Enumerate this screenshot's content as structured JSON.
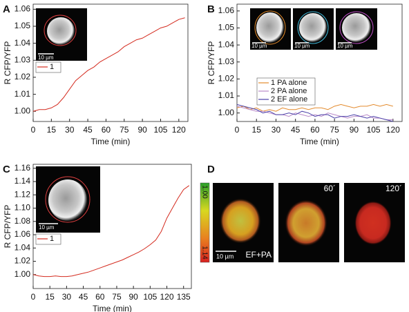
{
  "chart_data": [
    {
      "type": "line",
      "panel": "A",
      "xlabel": "Time (min)",
      "ylabel": "R CFP/YFP",
      "x": [
        0,
        5,
        10,
        15,
        20,
        25,
        30,
        35,
        40,
        45,
        50,
        55,
        60,
        65,
        70,
        75,
        80,
        85,
        90,
        95,
        100,
        105,
        110,
        115,
        120,
        125
      ],
      "series": [
        {
          "name": "1",
          "color": "#d42a1e",
          "values": [
            1.0,
            1.001,
            1.001,
            1.002,
            1.004,
            1.008,
            1.013,
            1.018,
            1.021,
            1.024,
            1.026,
            1.029,
            1.031,
            1.033,
            1.035,
            1.038,
            1.04,
            1.042,
            1.043,
            1.045,
            1.047,
            1.049,
            1.05,
            1.052,
            1.054,
            1.055
          ]
        }
      ],
      "xlim": [
        0,
        127.5
      ],
      "ylim": [
        0.994,
        1.063
      ],
      "xticks": [
        0,
        15,
        30,
        45,
        60,
        75,
        90,
        105,
        120
      ],
      "yticks": [
        {
          "value": 1.0,
          "label": "1.00"
        },
        {
          "value": 1.01,
          "label": "1.01"
        },
        {
          "value": 1.02,
          "label": "1.02"
        },
        {
          "value": 1.03,
          "label": "1.03"
        },
        {
          "value": 1.04,
          "label": "1.04"
        },
        {
          "value": 1.05,
          "label": "1.05"
        },
        {
          "value": 1.06,
          "label": "1.06"
        }
      ],
      "scale_bar_labels": [
        "10 µm"
      ]
    },
    {
      "type": "line",
      "panel": "B",
      "xlabel": "Time (min)",
      "ylabel": "R CFP/YFP",
      "x": [
        0,
        5,
        10,
        15,
        20,
        25,
        30,
        35,
        40,
        45,
        50,
        55,
        60,
        65,
        70,
        75,
        80,
        85,
        90,
        95,
        100,
        105,
        110,
        115,
        120
      ],
      "series": [
        {
          "name": "1 PA alone",
          "color": "#e38a2c",
          "values": [
            1.003,
            1.004,
            1.002,
            1.003,
            1.001,
            1.002,
            1.001,
            1.003,
            1.002,
            1.002,
            1.003,
            1.002,
            1.003,
            1.003,
            1.002,
            1.004,
            1.005,
            1.004,
            1.003,
            1.004,
            1.004,
            1.005,
            1.004,
            1.005,
            1.004
          ]
        },
        {
          "name": "2 PA alone",
          "color": "#b98ac8",
          "values": [
            1.004,
            1.003,
            1.002,
            1.001,
            1.001,
            1.0,
            0.999,
            0.999,
            0.998,
            1.0,
            0.999,
            0.998,
            0.999,
            0.998,
            1.0,
            0.999,
            0.998,
            0.997,
            0.998,
            0.998,
            0.999,
            0.997,
            0.997,
            0.996,
            0.996
          ]
        },
        {
          "name": "2 EF alone",
          "color": "#4a3fa8",
          "values": [
            1.005,
            1.004,
            1.003,
            1.002,
            1.0,
            1.001,
            0.999,
            0.999,
            1.0,
            0.999,
            1.001,
            1.0,
            0.998,
            0.999,
            0.999,
            0.997,
            0.998,
            0.998,
            0.999,
            0.998,
            0.997,
            0.998,
            0.997,
            0.996,
            0.995
          ]
        }
      ],
      "xlim": [
        0,
        127
      ],
      "ylim": [
        0.995,
        1.064
      ],
      "xticks": [
        0,
        15,
        30,
        45,
        60,
        75,
        90,
        105,
        120
      ],
      "yticks": [
        {
          "value": 1.0,
          "label": "1.00"
        },
        {
          "value": 1.01,
          "label": "1.01"
        },
        {
          "value": 1.02,
          "label": "1.02"
        },
        {
          "value": 1.03,
          "label": "1.03"
        },
        {
          "value": 1.04,
          "label": "1.04"
        },
        {
          "value": 1.05,
          "label": "1.05"
        },
        {
          "value": 1.06,
          "label": "1.06"
        }
      ],
      "scale_bar_labels": [
        "10 µm",
        "10 µm",
        "10 µm"
      ]
    },
    {
      "type": "line",
      "panel": "C",
      "xlabel": "Time (min)",
      "ylabel": "R CFP/YFP",
      "x": [
        0,
        5,
        10,
        15,
        20,
        25,
        30,
        35,
        40,
        45,
        50,
        55,
        60,
        65,
        70,
        75,
        80,
        85,
        90,
        95,
        100,
        105,
        110,
        115,
        120,
        125,
        130,
        135,
        140
      ],
      "series": [
        {
          "name": "1",
          "color": "#d42a1e",
          "values": [
            1.0,
            0.998,
            0.997,
            0.997,
            0.998,
            0.997,
            0.997,
            0.998,
            1.0,
            1.002,
            1.004,
            1.007,
            1.01,
            1.013,
            1.016,
            1.019,
            1.022,
            1.026,
            1.03,
            1.034,
            1.039,
            1.045,
            1.052,
            1.065,
            1.085,
            1.1,
            1.115,
            1.128,
            1.134
          ]
        }
      ],
      "xlim": [
        0,
        142
      ],
      "ylim": [
        0.979,
        1.166
      ],
      "xticks": [
        0,
        15,
        30,
        45,
        60,
        75,
        90,
        105,
        120,
        135
      ],
      "yticks": [
        {
          "value": 1.0,
          "label": "1.00"
        },
        {
          "value": 1.02,
          "label": "1.02"
        },
        {
          "value": 1.04,
          "label": "1.04"
        },
        {
          "value": 1.06,
          "label": "1.06"
        },
        {
          "value": 1.08,
          "label": "1.08"
        },
        {
          "value": 1.1,
          "label": "1.10"
        },
        {
          "value": 1.12,
          "label": "1.12"
        },
        {
          "value": 1.14,
          "label": "1.14"
        },
        {
          "value": 1.16,
          "label": "1.16"
        }
      ],
      "scale_bar_labels": [
        "10 µm"
      ]
    }
  ],
  "panel_d": {
    "panel": "D",
    "colorbar_labels": [
      "1.00",
      "1.14"
    ],
    "image_labels": [
      "EF+PA",
      "60´",
      "120´"
    ],
    "scale_bar_label": "10 µm"
  }
}
